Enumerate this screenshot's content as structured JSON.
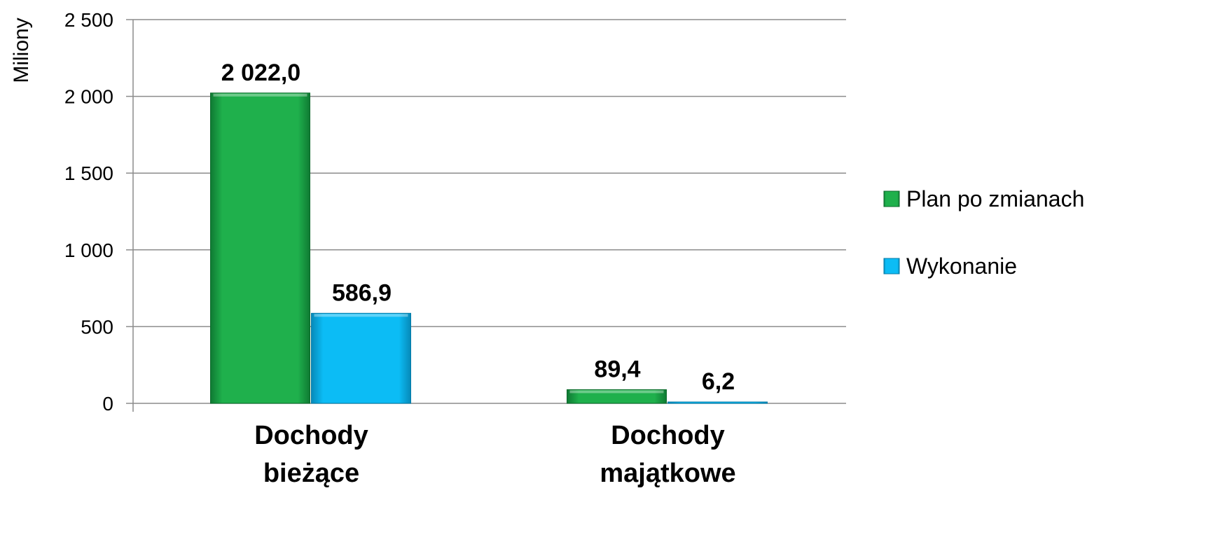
{
  "chart_data": {
    "type": "bar",
    "categories": [
      [
        "Dochody",
        "bieżące"
      ],
      [
        "Dochody",
        "majątkowe"
      ]
    ],
    "series": [
      {
        "name": "Plan po zmianach",
        "values": [
          2022.0,
          89.4
        ],
        "labels": [
          "2 022,0",
          "89,4"
        ],
        "color": "#1fb04c"
      },
      {
        "name": "Wykonanie",
        "values": [
          586.9,
          6.2
        ],
        "labels": [
          "586,9",
          "6,2"
        ],
        "color": "#0cbcf5"
      }
    ],
    "ylabel": "Miliony",
    "ylim": [
      0,
      2500
    ],
    "yticks": [
      0,
      500,
      1000,
      1500,
      2000,
      2500
    ],
    "ytick_labels": [
      "0",
      "500",
      "1 000",
      "1 500",
      "2 000",
      "2 500"
    ],
    "grid": true,
    "legend_position": "right"
  }
}
